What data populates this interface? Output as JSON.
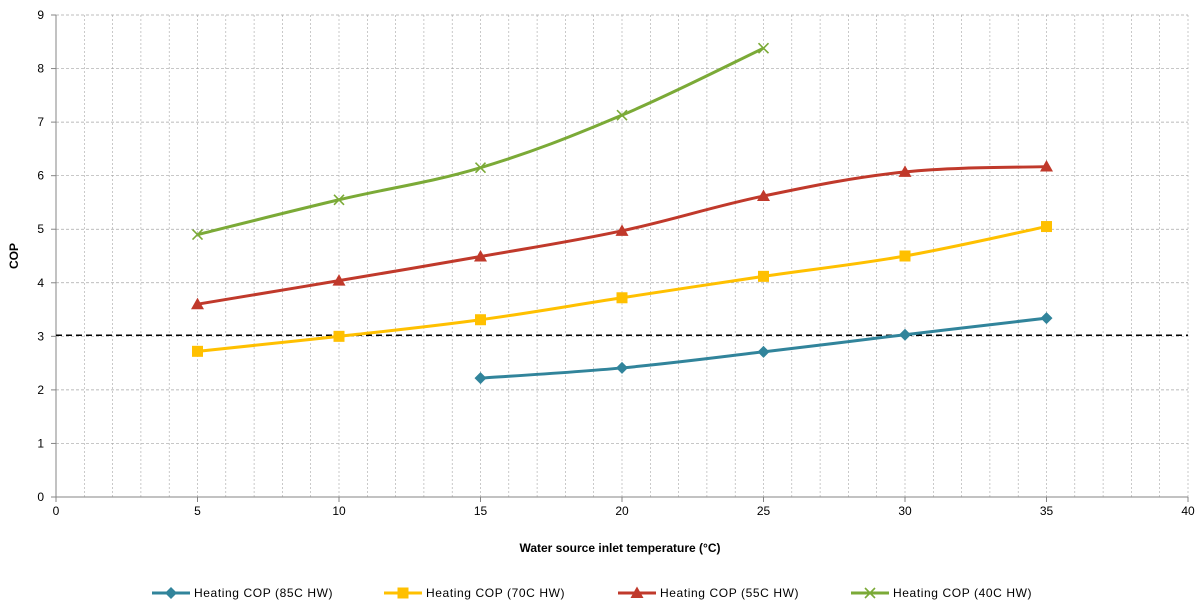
{
  "chart_data": {
    "type": "line",
    "xlabel": "Water source inlet temperature (°C)",
    "ylabel": "COP",
    "xlim": [
      0,
      40
    ],
    "ylim": [
      0,
      9
    ],
    "xticks": [
      0,
      5,
      10,
      15,
      20,
      25,
      30,
      35,
      40
    ],
    "yticks": [
      0,
      1,
      2,
      3,
      4,
      5,
      6,
      7,
      8,
      9
    ],
    "x_minor_step": 1,
    "grid": true,
    "legend_position": "bottom",
    "reference_line": {
      "y": 3.02,
      "style": "dashed",
      "color": "#000000"
    },
    "series": [
      {
        "name": "Heating COP (85C HW)",
        "color": "#31849B",
        "marker": "diamond",
        "x": [
          15,
          20,
          25,
          30,
          35
        ],
        "y": [
          2.22,
          2.41,
          2.71,
          3.03,
          3.34
        ]
      },
      {
        "name": "Heating COP (70C HW)",
        "color": "#FFC000",
        "marker": "square",
        "x": [
          5,
          10,
          15,
          20,
          25,
          30,
          35
        ],
        "y": [
          2.72,
          3.0,
          3.31,
          3.72,
          4.12,
          4.5,
          5.05
        ]
      },
      {
        "name": "Heating COP (55C HW)",
        "color": "#C0392B",
        "marker": "triangle",
        "x": [
          5,
          10,
          15,
          20,
          25,
          30,
          35
        ],
        "y": [
          3.6,
          4.04,
          4.49,
          4.97,
          5.62,
          6.07,
          6.17
        ]
      },
      {
        "name": "Heating COP (40C HW)",
        "color": "#7BAA37",
        "marker": "x",
        "x": [
          5,
          10,
          15,
          20,
          25
        ],
        "y": [
          4.9,
          5.55,
          6.15,
          7.13,
          8.38
        ]
      }
    ]
  }
}
